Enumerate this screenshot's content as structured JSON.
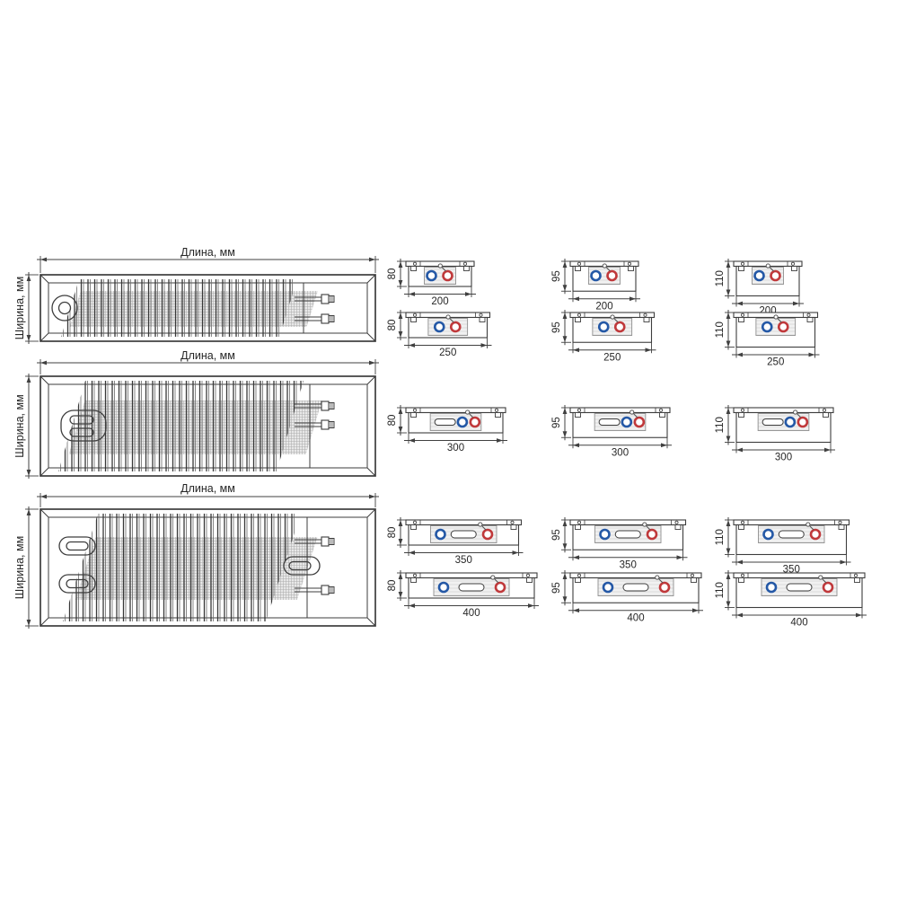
{
  "diagram": {
    "kind": "convector-dimension-drawing",
    "background": "#ffffff"
  },
  "colors": {
    "line": "#3d3d3d",
    "dim_line": "#404040",
    "text": "#262626",
    "panel_fill": "#f1f1f1",
    "panel_hatch": "#dadada",
    "fin_gray": "#adadad",
    "bundle_gray": "#e0e0e0",
    "supply_blue": "#2458a6",
    "return_red": "#c0393b"
  },
  "rows": [
    {
      "name": "group-height-80-95-110-widths-200-250",
      "section_content": "two-circles",
      "drawing": {
        "length_label": "Длина, мм",
        "width_label": "Ширина, мм"
      },
      "columns": [
        {
          "height_mm": 80,
          "height_label": "80",
          "sections": [
            {
              "width_mm": 200,
              "width_label": "200"
            },
            {
              "width_mm": 250,
              "width_label": "250"
            }
          ]
        },
        {
          "height_mm": 95,
          "height_label": "95",
          "sections": [
            {
              "width_mm": 200,
              "width_label": "200"
            },
            {
              "width_mm": 250,
              "width_label": "250"
            }
          ]
        },
        {
          "height_mm": 110,
          "height_label": "110",
          "sections": [
            {
              "width_mm": 200,
              "width_label": "200"
            },
            {
              "width_mm": 250,
              "width_label": "250"
            }
          ]
        }
      ]
    },
    {
      "name": "group-height-80-95-110-width-300",
      "section_content": "slot-left",
      "drawing": {
        "length_label": "Длина, мм",
        "width_label": "Ширина, мм"
      },
      "columns": [
        {
          "height_mm": 80,
          "height_label": "80",
          "sections": [
            {
              "width_mm": 300,
              "width_label": "300"
            }
          ]
        },
        {
          "height_mm": 95,
          "height_label": "95",
          "sections": [
            {
              "width_mm": 300,
              "width_label": "300"
            }
          ]
        },
        {
          "height_mm": 110,
          "height_label": "110",
          "sections": [
            {
              "width_mm": 300,
              "width_label": "300"
            }
          ]
        }
      ]
    },
    {
      "name": "group-height-80-95-110-widths-350-400",
      "section_content": "slot-center",
      "drawing": {
        "length_label": "Длина, мм",
        "width_label": "Ширина, мм"
      },
      "columns": [
        {
          "height_mm": 80,
          "height_label": "80",
          "sections": [
            {
              "width_mm": 350,
              "width_label": "350"
            },
            {
              "width_mm": 400,
              "width_label": "400"
            }
          ]
        },
        {
          "height_mm": 95,
          "height_label": "95",
          "sections": [
            {
              "width_mm": 350,
              "width_label": "350"
            },
            {
              "width_mm": 400,
              "width_label": "400"
            }
          ]
        },
        {
          "height_mm": 110,
          "height_label": "110",
          "sections": [
            {
              "width_mm": 350,
              "width_label": "350"
            },
            {
              "width_mm": 400,
              "width_label": "400"
            }
          ]
        }
      ]
    }
  ]
}
